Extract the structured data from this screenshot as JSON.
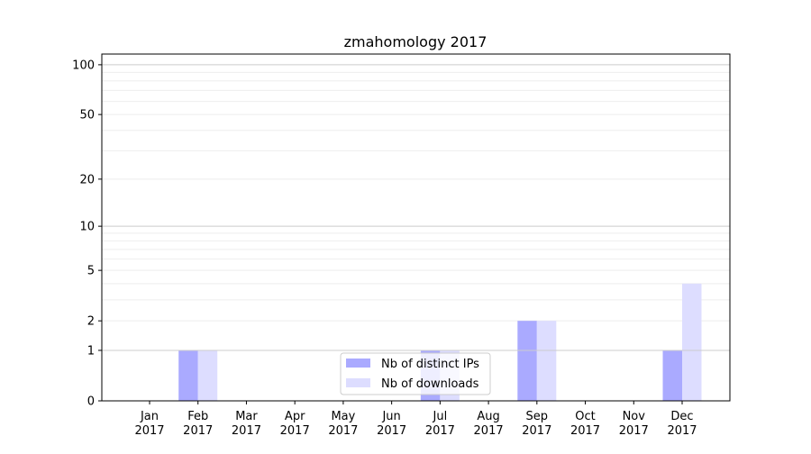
{
  "chart_data": {
    "type": "bar",
    "title": "zmahomology 2017",
    "xlabel": "",
    "ylabel": "",
    "yscale": "log(1+y)",
    "ylim": [
      0,
      116
    ],
    "yticks": [
      0,
      1,
      2,
      5,
      10,
      20,
      50,
      100
    ],
    "grid": true,
    "legend_placement": "lower-center",
    "categories": [
      [
        "Jan",
        "2017"
      ],
      [
        "Feb",
        "2017"
      ],
      [
        "Mar",
        "2017"
      ],
      [
        "Apr",
        "2017"
      ],
      [
        "May",
        "2017"
      ],
      [
        "Jun",
        "2017"
      ],
      [
        "Jul",
        "2017"
      ],
      [
        "Aug",
        "2017"
      ],
      [
        "Sep",
        "2017"
      ],
      [
        "Oct",
        "2017"
      ],
      [
        "Nov",
        "2017"
      ],
      [
        "Dec",
        "2017"
      ]
    ],
    "series": [
      {
        "name": "Nb of distinct IPs",
        "color": "#aaaaff",
        "values": [
          0,
          1,
          0,
          0,
          0,
          0,
          1,
          0,
          2,
          0,
          0,
          1
        ]
      },
      {
        "name": "Nb of downloads",
        "color": "#ddddff",
        "values": [
          0,
          1,
          0,
          0,
          0,
          0,
          1,
          0,
          2,
          0,
          0,
          4
        ]
      }
    ]
  }
}
